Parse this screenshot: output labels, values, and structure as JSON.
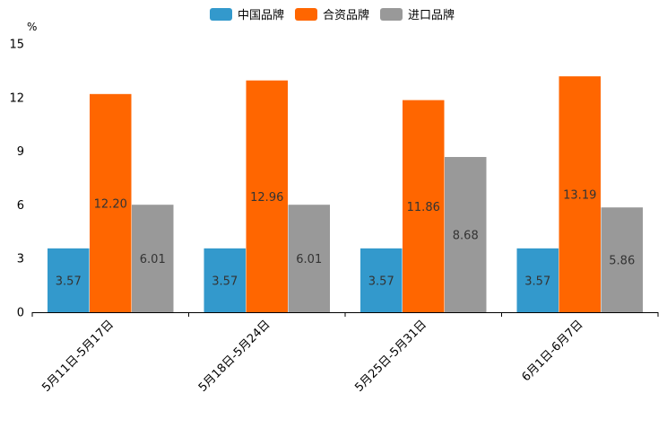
{
  "chart_data": {
    "type": "bar",
    "unit_label": "%",
    "categories": [
      "5月11日-5月17日",
      "5月18日-5月24日",
      "5月25日-5月31日",
      "6月1日-6月7日"
    ],
    "series": [
      {
        "name": "中国品牌",
        "color": "#3399cc",
        "values": [
          3.57,
          3.57,
          3.57,
          3.57
        ],
        "labels": [
          "3.57",
          "3.57",
          "3.57",
          "3.57"
        ]
      },
      {
        "name": "合资品牌",
        "color": "#ff6600",
        "values": [
          12.2,
          12.96,
          11.86,
          13.19
        ],
        "labels": [
          "12.20",
          "12.96",
          "11.86",
          "13.19"
        ]
      },
      {
        "name": "进口品牌",
        "color": "#999999",
        "values": [
          6.01,
          6.01,
          8.68,
          5.86
        ],
        "labels": [
          "6.01",
          "6.01",
          "8.68",
          "5.86"
        ]
      }
    ],
    "yticks": [
      0,
      3,
      6,
      9,
      12,
      15
    ],
    "ylim": [
      0,
      15
    ],
    "grid": false,
    "legend_position": "top-center"
  }
}
